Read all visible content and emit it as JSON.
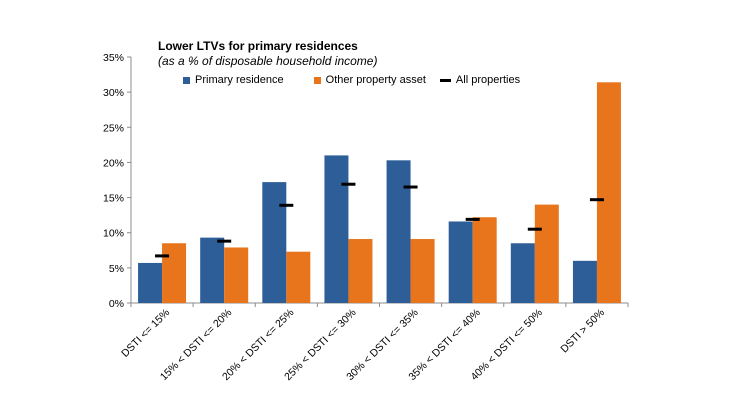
{
  "chart_data": {
    "type": "bar",
    "title": "Lower LTVs for primary residences",
    "subtitle": "(as a % of disposable household income)",
    "categories": [
      "DSTI <= 15%",
      "15% < DSTI <= 20%",
      "20% < DSTI <= 25%",
      "25% < DSTI <= 30%",
      "30% < DSTI <= 35%",
      "35% < DSTI <= 40%",
      "40% < DSTI <= 50%",
      "DSTI > 50%"
    ],
    "series": [
      {
        "name": "Primary residence",
        "type": "bar",
        "color": "#2E5E97",
        "values": [
          5.7,
          9.3,
          17.2,
          21.0,
          20.3,
          11.6,
          8.5,
          6.0
        ]
      },
      {
        "name": "Other property asset",
        "type": "bar",
        "color": "#E8741B",
        "values": [
          8.5,
          7.9,
          7.3,
          9.1,
          9.1,
          12.2,
          14.0,
          31.4
        ]
      },
      {
        "name": "All properties",
        "type": "marker",
        "color": "#000000",
        "values": [
          6.7,
          8.8,
          13.9,
          16.9,
          16.5,
          11.9,
          10.5,
          14.7
        ]
      }
    ],
    "yticks": [
      "0%",
      "5%",
      "10%",
      "15%",
      "20%",
      "25%",
      "30%",
      "35%"
    ],
    "ylim": [
      0,
      35
    ],
    "xlabel": "",
    "ylabel": "",
    "grid": false
  }
}
